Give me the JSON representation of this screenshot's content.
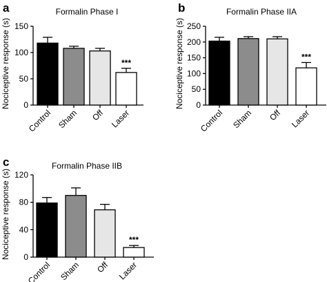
{
  "chart_data": [
    {
      "type": "bar",
      "panel": "a",
      "title": "Formalin Phase I",
      "ylabel": "Nociceptive response (s)",
      "ylim": [
        0,
        150
      ],
      "yticks": [
        "0",
        "50",
        "100",
        "150"
      ],
      "categories": [
        "Control",
        "Sham",
        "Off",
        "Laser"
      ],
      "values": [
        118,
        108,
        103,
        62
      ],
      "errors": [
        11,
        4,
        5,
        8
      ],
      "annotations": [
        "",
        "",
        "",
        "***"
      ],
      "colors": [
        "#000000",
        "#8c8c8c",
        "#e6e6e6",
        "#ffffff"
      ]
    },
    {
      "type": "bar",
      "panel": "b",
      "title": "Formalin Phase IIA",
      "ylabel": "Nociceptive response (s)",
      "ylim": [
        0,
        250
      ],
      "yticks": [
        "0",
        "50",
        "100",
        "150",
        "200",
        "250"
      ],
      "categories": [
        "Control",
        "Sham",
        "Off",
        "Laser"
      ],
      "values": [
        203,
        211,
        210,
        118
      ],
      "errors": [
        12,
        6,
        7,
        17
      ],
      "annotations": [
        "",
        "",
        "",
        "***"
      ],
      "colors": [
        "#000000",
        "#8c8c8c",
        "#e6e6e6",
        "#ffffff"
      ]
    },
    {
      "type": "bar",
      "panel": "c",
      "title": "Formalin Phase IIB",
      "ylabel": "Nociceptive response (s)",
      "ylim": [
        0,
        120
      ],
      "yticks": [
        "0",
        "40",
        "80",
        "120"
      ],
      "categories": [
        "Control",
        "Sham",
        "Off",
        "Laser"
      ],
      "values": [
        79,
        90,
        69,
        14
      ],
      "errors": [
        8,
        11,
        8,
        3
      ],
      "annotations": [
        "",
        "",
        "",
        "***"
      ],
      "colors": [
        "#000000",
        "#8c8c8c",
        "#e6e6e6",
        "#ffffff"
      ]
    }
  ]
}
